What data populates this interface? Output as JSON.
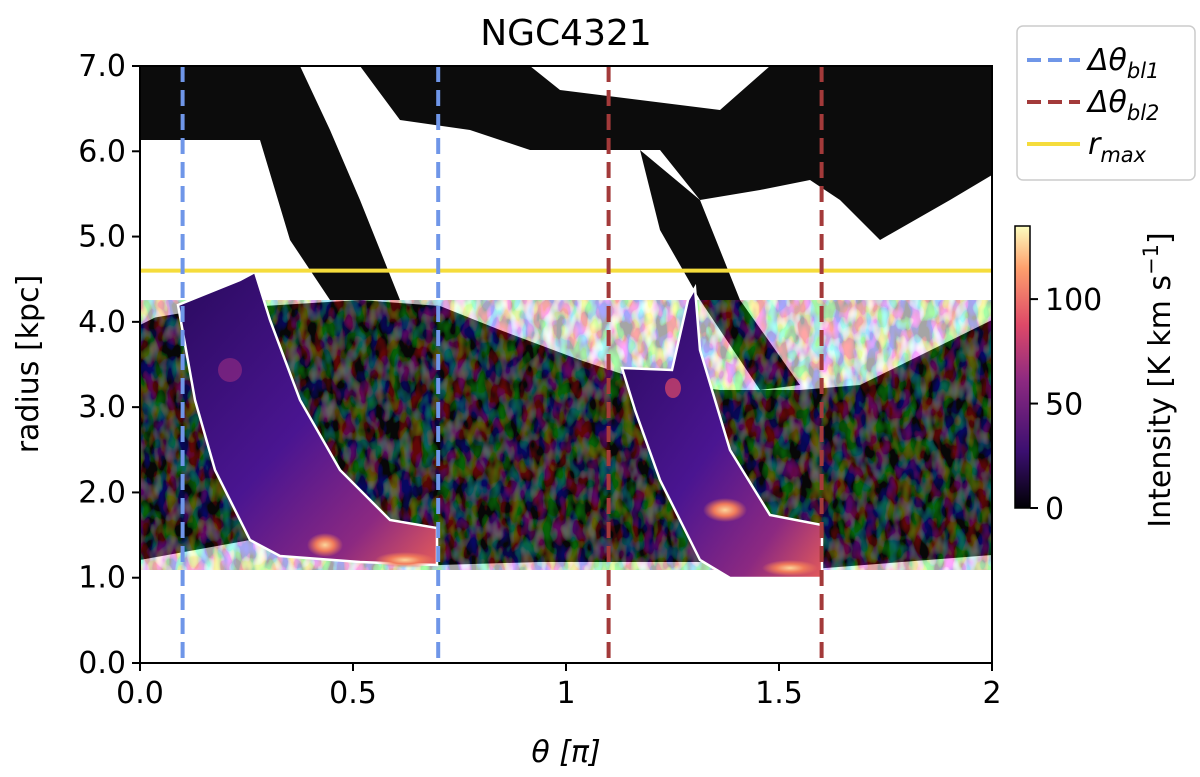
{
  "chart_data": {
    "type": "heatmap",
    "title": "NGC4321",
    "xlabel": "θ [π]",
    "ylabel": "radius [kpc]",
    "xlim": [
      0,
      2
    ],
    "ylim": [
      0,
      7
    ],
    "x_ticks": [
      0,
      0.5,
      1,
      1.5,
      2
    ],
    "x_tick_labels": [
      "0.0",
      "0.5",
      "1",
      "1.5",
      "2"
    ],
    "y_ticks": [
      0,
      1,
      2,
      3,
      4,
      5,
      6,
      7
    ],
    "y_tick_labels": [
      "0.0",
      "1.0",
      "2.0",
      "3.0",
      "4.0",
      "5.0",
      "6.0",
      "7.0"
    ],
    "grid": false,
    "legend_position": "outside-top-right",
    "legend": [
      {
        "label": "Δθ",
        "sub": "bl1",
        "style": "dashed",
        "color": "#6f96e8"
      },
      {
        "label": "Δθ",
        "sub": "bl2",
        "style": "dashed",
        "color": "#a33a3a"
      },
      {
        "label": "r",
        "sub": "max",
        "style": "solid",
        "color": "#f5dc3c"
      }
    ],
    "vlines": [
      {
        "group": "bl1",
        "x": 0.1,
        "color": "#6f96e8"
      },
      {
        "group": "bl1",
        "x": 0.7,
        "color": "#6f96e8"
      },
      {
        "group": "bl2",
        "x": 1.1,
        "color": "#a33a3a"
      },
      {
        "group": "bl2",
        "x": 1.6,
        "color": "#a33a3a"
      }
    ],
    "hlines": [
      {
        "name": "r_max",
        "y": 4.6,
        "color": "#f5dc3c"
      }
    ],
    "masked_regions": [
      {
        "name": "bar-lane-1",
        "colormap": "inferno-like",
        "x_range": [
          0.1,
          0.7
        ],
        "r_range": [
          1.1,
          4.6
        ]
      },
      {
        "name": "bar-lane-2",
        "colormap": "inferno-like",
        "x_range": [
          1.13,
          1.6
        ],
        "r_range": [
          1.0,
          4.6
        ]
      }
    ],
    "colorbar": {
      "label": "Intensity [K km s",
      "label_exponent": "−1",
      "label_close": "]",
      "ticks": [
        0,
        50,
        100
      ],
      "tick_labels": [
        "0",
        "50",
        "100"
      ],
      "range": [
        0,
        135
      ],
      "colors": [
        "#000004",
        "#3b0f70",
        "#8c2981",
        "#de4968",
        "#fe9f6d",
        "#fcfdbf"
      ]
    }
  }
}
